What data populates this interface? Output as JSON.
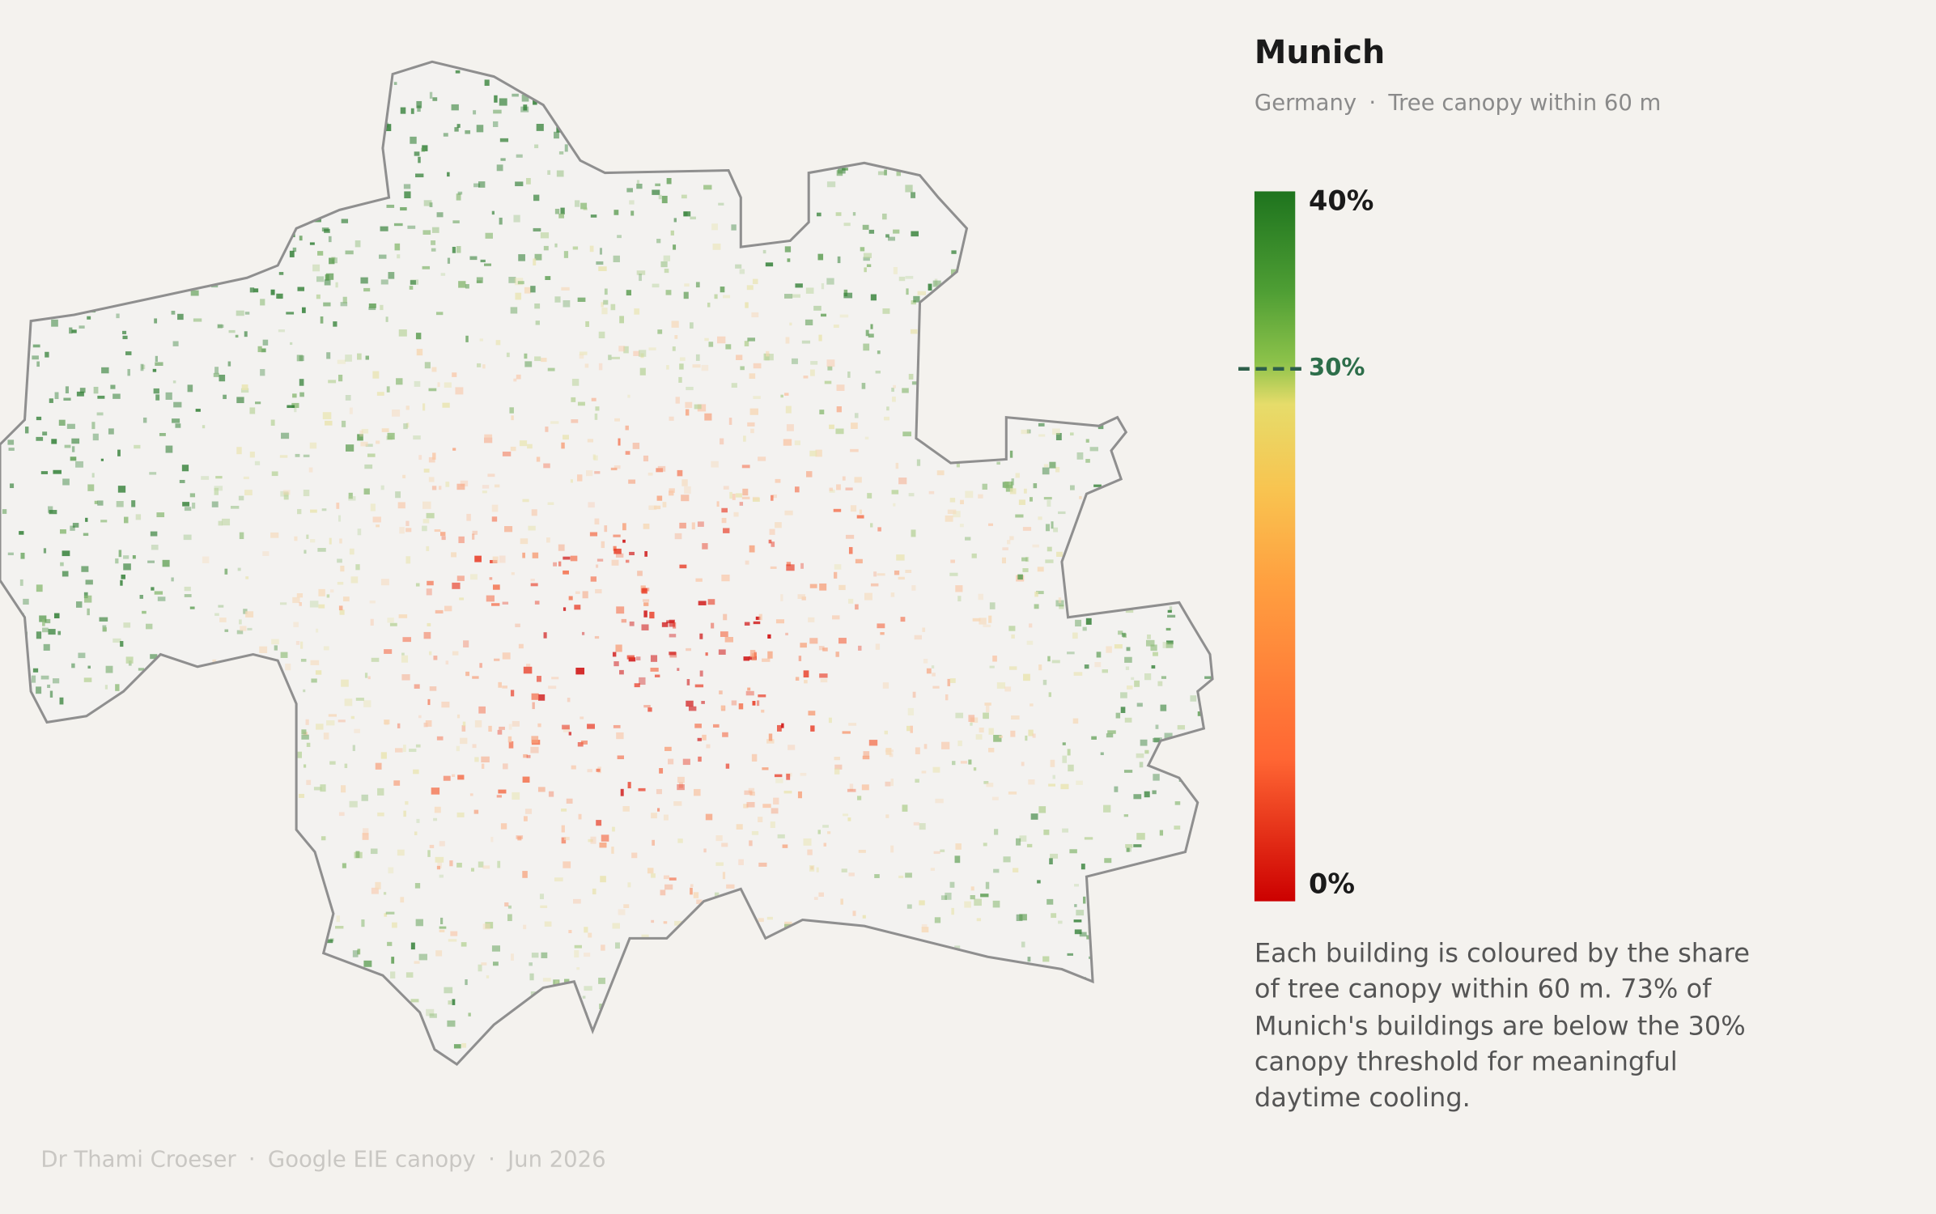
{
  "header": {
    "title": "Munich",
    "subtitle": [
      "Germany",
      "Tree canopy within 60 m"
    ]
  },
  "legend": {
    "min": 0,
    "max": 40,
    "ticks": [
      {
        "value": 40,
        "label": "40%"
      },
      {
        "value": 30,
        "label": "30%"
      },
      {
        "value": 0,
        "label": "0%"
      }
    ],
    "threshold_tick": 1
  },
  "description": "Each building is coloured by the share of tree canopy within 60 m. 73% of Munich's buildings are below the 30% canopy threshold for meaningful daytime cooling.",
  "footer": [
    "Dr Thami Croeser",
    "Google EIE canopy",
    "Jun 2026"
  ]
}
